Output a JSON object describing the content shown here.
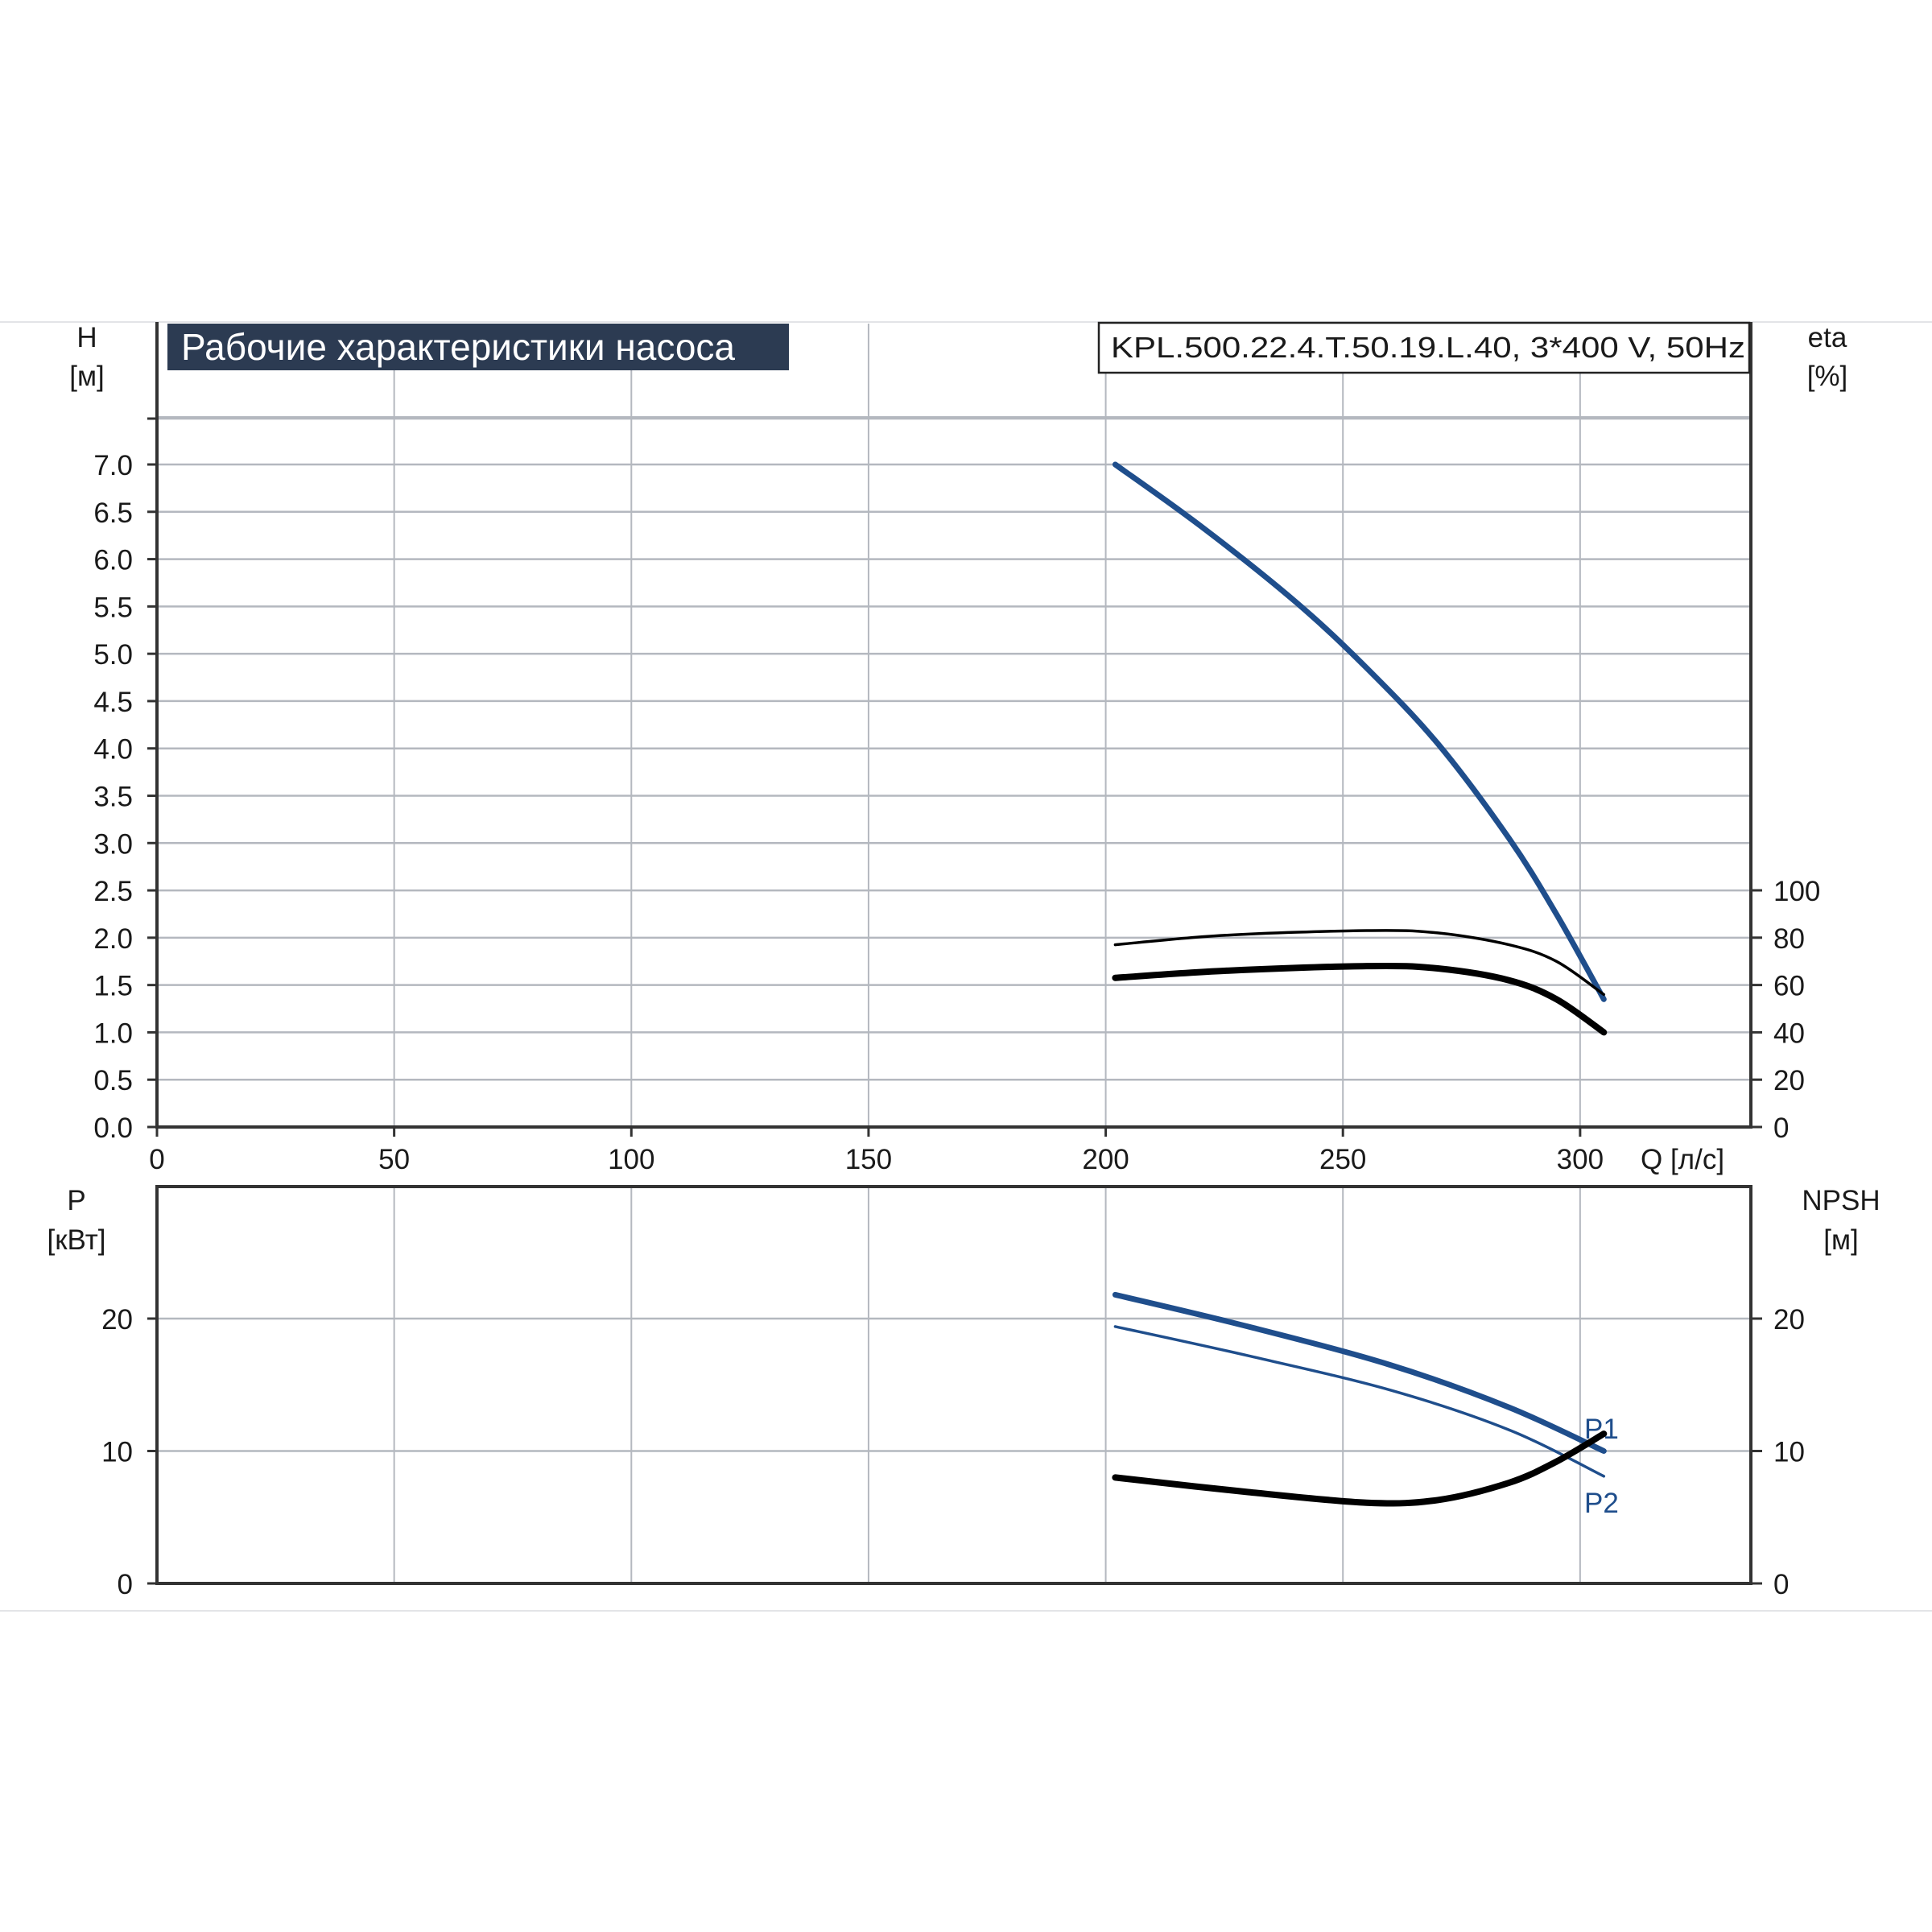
{
  "title": "Рабочие характеристики насоса",
  "model": "KPL.500.22.4.T.50.19.L.40, 3*400 V, 50Hz",
  "colors": {
    "blue": "#1f4e8c",
    "black": "#000000",
    "grid": "#b4b8bf",
    "title_bg": "#2c3b52"
  },
  "chart_data": [
    {
      "type": "line",
      "name": "top-panel",
      "xlabel": "Q [л/с]",
      "ylabel_left": [
        "H",
        "[м]"
      ],
      "ylabel_right": [
        "eta",
        "[%]"
      ],
      "xlim": [
        0,
        336
      ],
      "ylim_left": [
        0,
        7.5
      ],
      "ylim_right": [
        0,
        150
      ],
      "x_ticks": [
        "0",
        "50",
        "100",
        "150",
        "200",
        "250",
        "300"
      ],
      "y_left_ticks": [
        "0.0",
        "0.5",
        "1.0",
        "1.5",
        "2.0",
        "2.5",
        "3.0",
        "3.5",
        "4.0",
        "4.5",
        "5.0",
        "5.5",
        "6.0",
        "6.5",
        "7.0"
      ],
      "y_right_ticks": [
        "0",
        "20",
        "40",
        "60",
        "80",
        "100"
      ],
      "grid": true,
      "series": [
        {
          "axis": "left",
          "color": "#1f4e8c",
          "width": 7,
          "x": [
            202,
            220,
            240,
            255,
            270,
            285,
            295,
            305
          ],
          "y": [
            7.0,
            6.35,
            5.55,
            4.85,
            4.05,
            3.05,
            2.25,
            1.35
          ]
        },
        {
          "axis": "right",
          "color": "#000000",
          "width": 3.5,
          "x": [
            202,
            225,
            255,
            270,
            285,
            295,
            305
          ],
          "y": [
            77,
            81,
            83,
            82,
            77,
            70,
            56
          ]
        },
        {
          "axis": "right",
          "color": "#000000",
          "width": 8,
          "x": [
            202,
            225,
            255,
            270,
            285,
            295,
            305
          ],
          "y": [
            63,
            66,
            68,
            67,
            62,
            54,
            40
          ]
        }
      ]
    },
    {
      "type": "line",
      "name": "bottom-panel",
      "ylabel_left": [
        "P",
        "[кВт]"
      ],
      "ylabel_right": [
        "NPSH",
        "[м]"
      ],
      "xlim": [
        0,
        336
      ],
      "ylim_left": [
        0,
        30
      ],
      "ylim_right": [
        0,
        30
      ],
      "y_left_ticks": [
        "0",
        "10",
        "20"
      ],
      "y_right_ticks": [
        "0",
        "10",
        "20"
      ],
      "grid": true,
      "series": [
        {
          "name": "P1",
          "axis": "left",
          "color": "#1f4e8c",
          "width": 7,
          "x": [
            202,
            230,
            260,
            285,
            305
          ],
          "y": [
            21.8,
            19.4,
            16.5,
            13.3,
            10.0
          ]
        },
        {
          "name": "P2",
          "axis": "left",
          "color": "#1f4e8c",
          "width": 3.5,
          "x": [
            202,
            230,
            260,
            285,
            305
          ],
          "y": [
            19.4,
            17.2,
            14.6,
            11.6,
            8.1
          ]
        },
        {
          "axis": "right",
          "color": "#000000",
          "width": 8,
          "x": [
            202,
            230,
            255,
            270,
            285,
            295,
            305
          ],
          "y": [
            8.0,
            6.9,
            6.1,
            6.3,
            7.6,
            9.2,
            11.3
          ]
        }
      ]
    }
  ]
}
